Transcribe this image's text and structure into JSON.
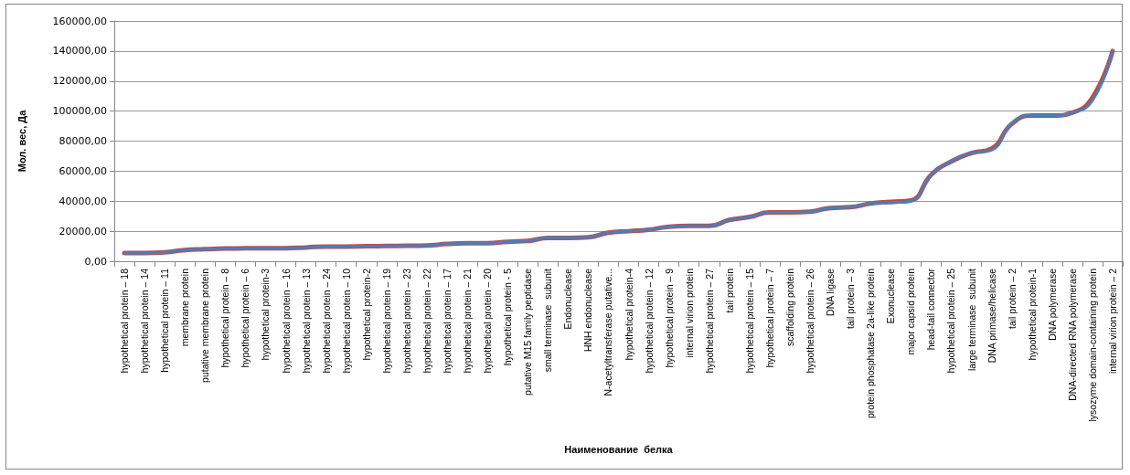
{
  "chart_data": {
    "type": "line",
    "xlabel": "Наименование  белка",
    "ylabel": "Мол. вес, Да",
    "categories": [
      "hypothetical protein – 18",
      "hypothetical protein – 14",
      "hypothetical protein – 11",
      "membrane protein",
      "putative membrane protein",
      "hypothetical protein – 8",
      "hypothetical protein – 6",
      "hypothetical protein-3",
      "hypothetical protein – 16",
      "hypothetical protein – 13",
      "hypothetical protein – 24",
      "hypothetical protein – 10",
      "hypothetical protein-2",
      "hypothetical protein – 19",
      "hypothetical protein – 23",
      "hypothetical protein – 22",
      "hypothetical protein – 17",
      "hypothetical protein – 21",
      "hypothetical protein – 20",
      "hypothetical protein - 5",
      "putative M15 family peptidase",
      "small terminase  subunit",
      "Endonuclease",
      "HNH endonuclease",
      "N-acetyltransferase putative...",
      "hypothetical protein-4",
      "hypothetical protein – 12",
      "hypothetical protein – 9",
      "internal virion protein",
      "hypothetical protein – 27",
      "tail protein",
      "hypothetical protein – 15",
      "hypothetical protein – 7",
      "scaffolding protein",
      "hypothetical protein – 26",
      "DNA ligase",
      "tail protein – 3",
      "protein phosphatase 2a-like protein",
      "Exonuclease",
      "major capsid protein",
      "head-tail connector",
      "hypothetical protein – 25",
      "large terminase  subunit",
      "DNA primase/helicase",
      "tail protein – 2",
      "hypothetical protein-1",
      "DNA polymerase",
      "DNA-directed RNA polymerase",
      "lysozyme domain-containing protein",
      "internal virion protein – 2"
    ],
    "series": [
      {
        "color": "#be4b48",
        "values": [
          5500,
          5500,
          6000,
          7500,
          8000,
          8500,
          8600,
          8700,
          8700,
          9200,
          9800,
          9800,
          10000,
          10200,
          10300,
          10500,
          11500,
          12000,
          12000,
          13000,
          13500,
          15500,
          15500,
          16000,
          19000,
          20000,
          21000,
          23000,
          23500,
          23500,
          27500,
          29500,
          32500,
          32500,
          33000,
          35500,
          36000,
          38500,
          39500,
          40500,
          57500,
          66500,
          72000,
          75000,
          91500,
          97000,
          97000,
          99000,
          109000,
          140000
        ]
      },
      {
        "color": "#4a7ebb",
        "values": [
          5500,
          5500,
          6000,
          7500,
          8000,
          8500,
          8600,
          8700,
          8700,
          9200,
          9800,
          9800,
          10000,
          10200,
          10300,
          10500,
          11500,
          12000,
          12000,
          13000,
          13500,
          15500,
          15500,
          16000,
          19000,
          20000,
          21000,
          23000,
          23500,
          23500,
          27500,
          29500,
          32500,
          32500,
          33000,
          35500,
          36000,
          38500,
          39000,
          40000,
          57500,
          66500,
          72000,
          74000,
          92000,
          97000,
          97000,
          99000,
          107000,
          140000
        ]
      }
    ],
    "ylim": [
      0,
      160000
    ],
    "yticks": [
      {
        "value": 0,
        "label": "0,00"
      },
      {
        "value": 20000,
        "label": "20000,00"
      },
      {
        "value": 40000,
        "label": "40000,00"
      },
      {
        "value": 60000,
        "label": "60000,00"
      },
      {
        "value": 80000,
        "label": "80000,00"
      },
      {
        "value": 100000,
        "label": "100000,00"
      },
      {
        "value": 120000,
        "label": "120000,00"
      },
      {
        "value": 140000,
        "label": "140000,00"
      },
      {
        "value": 160000,
        "label": "160000,00"
      }
    ],
    "grid": "y",
    "marker": "none",
    "line_style": "solid"
  }
}
